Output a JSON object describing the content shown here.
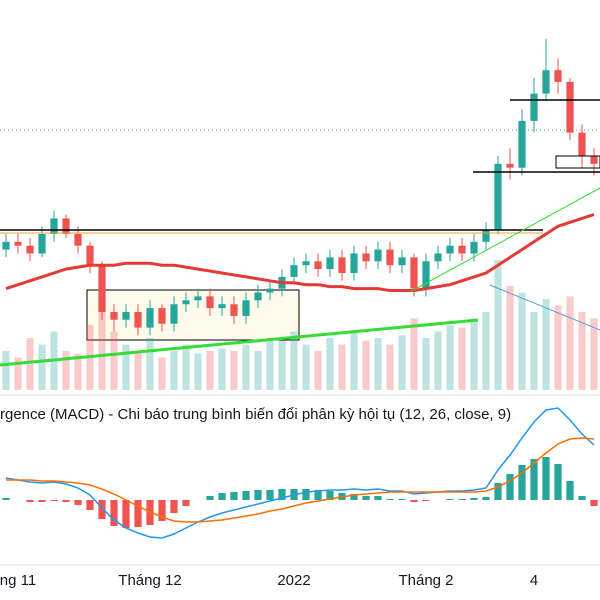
{
  "chart_data": {
    "type": "candlestick",
    "categories": [
      null,
      "ng 11",
      null,
      null,
      null,
      null,
      null,
      null,
      null,
      null,
      null,
      null,
      "Tháng 12",
      null,
      null,
      null,
      null,
      null,
      null,
      null,
      null,
      null,
      null,
      null,
      "2022",
      null,
      null,
      null,
      null,
      null,
      null,
      null,
      null,
      null,
      null,
      "Tháng 2",
      null,
      null,
      null,
      null,
      null,
      null,
      null,
      null,
      "4",
      null,
      null,
      null,
      null,
      null
    ],
    "open": [
      36,
      38,
      37,
      35,
      40,
      44,
      40,
      37,
      32,
      20,
      18,
      20,
      16,
      21,
      17,
      22,
      23,
      24,
      21,
      22,
      19,
      23,
      25,
      26,
      29,
      32,
      33,
      31,
      34,
      30,
      35,
      33,
      36,
      32,
      34,
      26,
      33,
      35,
      37,
      35,
      38,
      41,
      58,
      57,
      69,
      76,
      82,
      79,
      66,
      60
    ],
    "close": [
      38,
      37,
      35,
      40,
      44,
      40,
      37,
      32,
      20,
      18,
      20,
      16,
      21,
      17,
      22,
      23,
      24,
      21,
      22,
      19,
      23,
      25,
      26,
      29,
      32,
      33,
      31,
      34,
      30,
      35,
      33,
      36,
      32,
      34,
      26,
      33,
      35,
      37,
      35,
      38,
      41,
      58,
      57,
      69,
      76,
      82,
      79,
      66,
      60,
      58
    ],
    "high": [
      40,
      40,
      39,
      42,
      46,
      45,
      42,
      38,
      33,
      22,
      22,
      22,
      23,
      22,
      24,
      25,
      26,
      26,
      24,
      24,
      25,
      27,
      28,
      31,
      34,
      35,
      35,
      36,
      36,
      37,
      37,
      38,
      38,
      36,
      35,
      35,
      37,
      39,
      39,
      40,
      43,
      60,
      62,
      72,
      80,
      90,
      85,
      80,
      68,
      62
    ],
    "low": [
      34,
      35,
      33,
      34,
      38,
      39,
      35,
      30,
      18,
      15,
      16,
      14,
      14,
      15,
      15,
      20,
      21,
      19,
      19,
      17,
      17,
      21,
      23,
      24,
      27,
      30,
      29,
      29,
      28,
      28,
      31,
      31,
      30,
      30,
      24,
      24,
      31,
      33,
      33,
      33,
      36,
      40,
      54,
      55,
      66,
      74,
      76,
      64,
      57,
      55
    ],
    "ma": [
      26,
      27,
      28,
      29,
      30,
      31,
      31.5,
      32,
      32,
      32,
      32.5,
      32.5,
      32.5,
      32,
      32,
      31.5,
      31,
      30.5,
      30,
      29.5,
      29,
      28.5,
      28,
      27.5,
      27.5,
      27,
      27,
      26.5,
      26.5,
      26,
      26,
      26,
      25.5,
      25.5,
      25.5,
      26,
      26.5,
      27,
      28,
      29,
      30,
      32,
      34,
      36,
      38,
      40,
      42,
      43,
      44,
      45
    ],
    "volume": [
      30,
      25,
      40,
      35,
      45,
      30,
      28,
      50,
      60,
      45,
      35,
      30,
      40,
      25,
      30,
      35,
      28,
      30,
      32,
      30,
      35,
      30,
      40,
      38,
      45,
      35,
      30,
      40,
      35,
      45,
      38,
      40,
      35,
      42,
      55,
      40,
      45,
      50,
      48,
      55,
      60,
      100,
      80,
      75,
      60,
      70,
      65,
      72,
      60,
      55
    ],
    "ylim": [
      0,
      100
    ],
    "vlim": [
      0,
      300
    ],
    "macdlim": [
      -60,
      100
    ],
    "up_color": "#26a69a",
    "down_color": "#ef5350",
    "ma_color": "#e53935",
    "macd_title": "rgence (MACD) - Chi báo trung bình biến đổi phân kỳ hội tụ (12, 26, close, 9)",
    "macd": [
      22,
      20,
      18,
      17,
      18,
      16,
      12,
      5,
      -8,
      -20,
      -28,
      -33,
      -37,
      -38,
      -34,
      -28,
      -22,
      -17,
      -13,
      -10,
      -7,
      -4,
      -1,
      2,
      5,
      8,
      9,
      10,
      10,
      11,
      10,
      11,
      9,
      9,
      6,
      7,
      8,
      9,
      9,
      10,
      12,
      30,
      45,
      62,
      78,
      90,
      92,
      80,
      66,
      55
    ],
    "signal": [
      20,
      20,
      20,
      19,
      19,
      18,
      17,
      15,
      11,
      6,
      0,
      -6,
      -12,
      -17,
      -21,
      -22,
      -22,
      -21,
      -20,
      -18,
      -16,
      -14,
      -11,
      -9,
      -6,
      -3,
      -1,
      1,
      3,
      5,
      6,
      7,
      8,
      8,
      8,
      8,
      8,
      8,
      8,
      8,
      9,
      13,
      19,
      27,
      37,
      47,
      56,
      61,
      62,
      61
    ],
    "histogram": [
      2,
      0,
      -2,
      -2,
      -1,
      -2,
      -5,
      -10,
      -19,
      -26,
      -28,
      -27,
      -25,
      -21,
      -13,
      -6,
      0,
      4,
      7,
      8,
      9,
      10,
      10,
      11,
      11,
      11,
      10,
      9,
      7,
      6,
      4,
      4,
      1,
      1,
      -2,
      -1,
      0,
      1,
      1,
      2,
      3,
      17,
      26,
      35,
      41,
      43,
      36,
      19,
      4,
      -6
    ],
    "macd_color": "#2196f3",
    "signal_color": "#ff6d00"
  }
}
